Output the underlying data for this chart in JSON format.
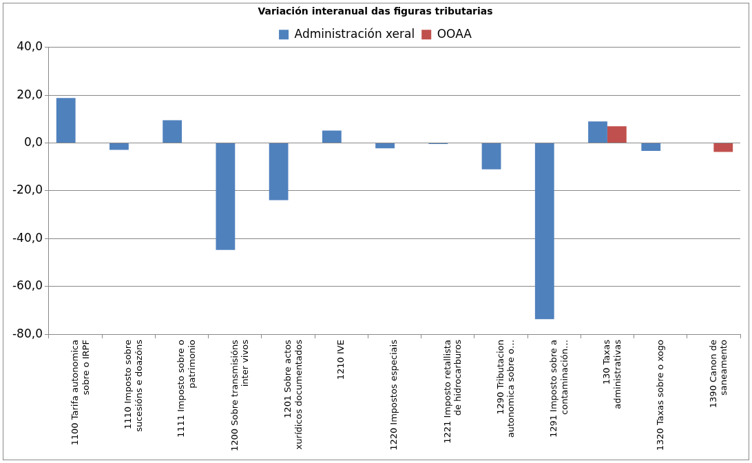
{
  "chart_data": {
    "type": "bar",
    "title": "Variación interanual das figuras tributarias",
    "categories": [
      "1100 Tarifa autonomica sobre o IRPF",
      "1110 Imposto sobre sucesións e doazóns",
      "1111 Imposto sobre o patrimonio",
      "1200 Sobre transmisións inter vivos",
      "1201 Sobre actos xurídicos documentados",
      "1210 IVE",
      "1220 Impostos especiais",
      "1221 Imposto retallista de hidrocarburos",
      "1290 Tributacion autonomica sobre o…",
      "1291 Imposto sobre a contaminación…",
      "130 Taxas administrativas",
      "1320 Taxas sobre o xogo",
      "1390 Canon de saneamento"
    ],
    "series": [
      {
        "name": "Administración xeral",
        "color": "#4f81bd",
        "values": [
          18.8,
          -2.9,
          9.5,
          -44.7,
          -23.9,
          5.2,
          -2.2,
          -0.4,
          -11.0,
          -73.7,
          9.0,
          -3.3,
          null
        ]
      },
      {
        "name": "OOAA",
        "color": "#c0504d",
        "values": [
          null,
          null,
          null,
          null,
          null,
          null,
          null,
          null,
          null,
          null,
          7.0,
          null,
          -3.7
        ]
      }
    ],
    "ylim": [
      -80,
      40
    ],
    "yticks": [
      {
        "value": -80,
        "label": "-80,0"
      },
      {
        "value": -60,
        "label": "-60,0"
      },
      {
        "value": -40,
        "label": "-40,0"
      },
      {
        "value": -20,
        "label": "-20,0"
      },
      {
        "value": 0,
        "label": "0,0"
      },
      {
        "value": 20,
        "label": "20,0"
      },
      {
        "value": 40,
        "label": "40,0"
      }
    ],
    "grid": "y",
    "legend": "top"
  }
}
